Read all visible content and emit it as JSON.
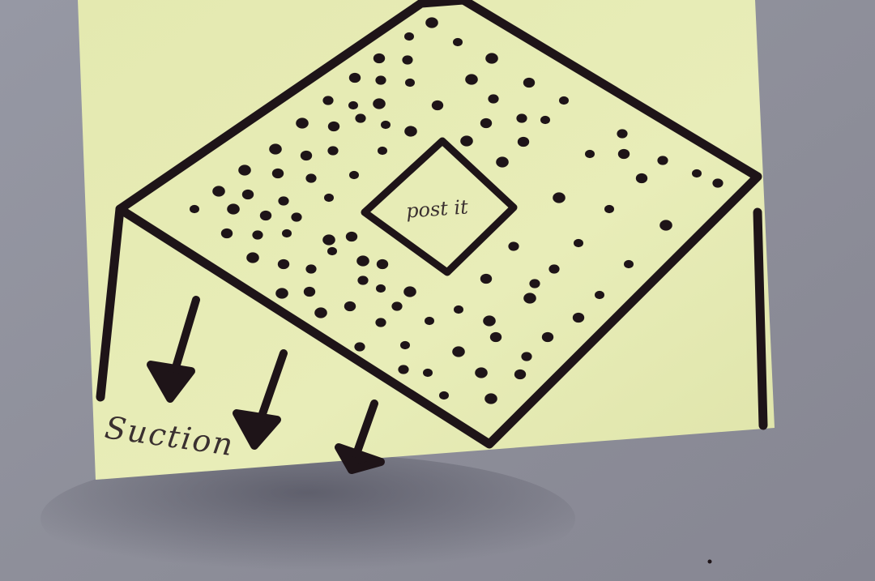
{
  "photo": {
    "subject": "sticky-note-drawing",
    "wall_color": "#8e8f9a",
    "note_color": "#e6ebb4",
    "ink_color": "#1e1418"
  },
  "labels": {
    "center_label": "post it",
    "arrow_label": "Suction"
  }
}
